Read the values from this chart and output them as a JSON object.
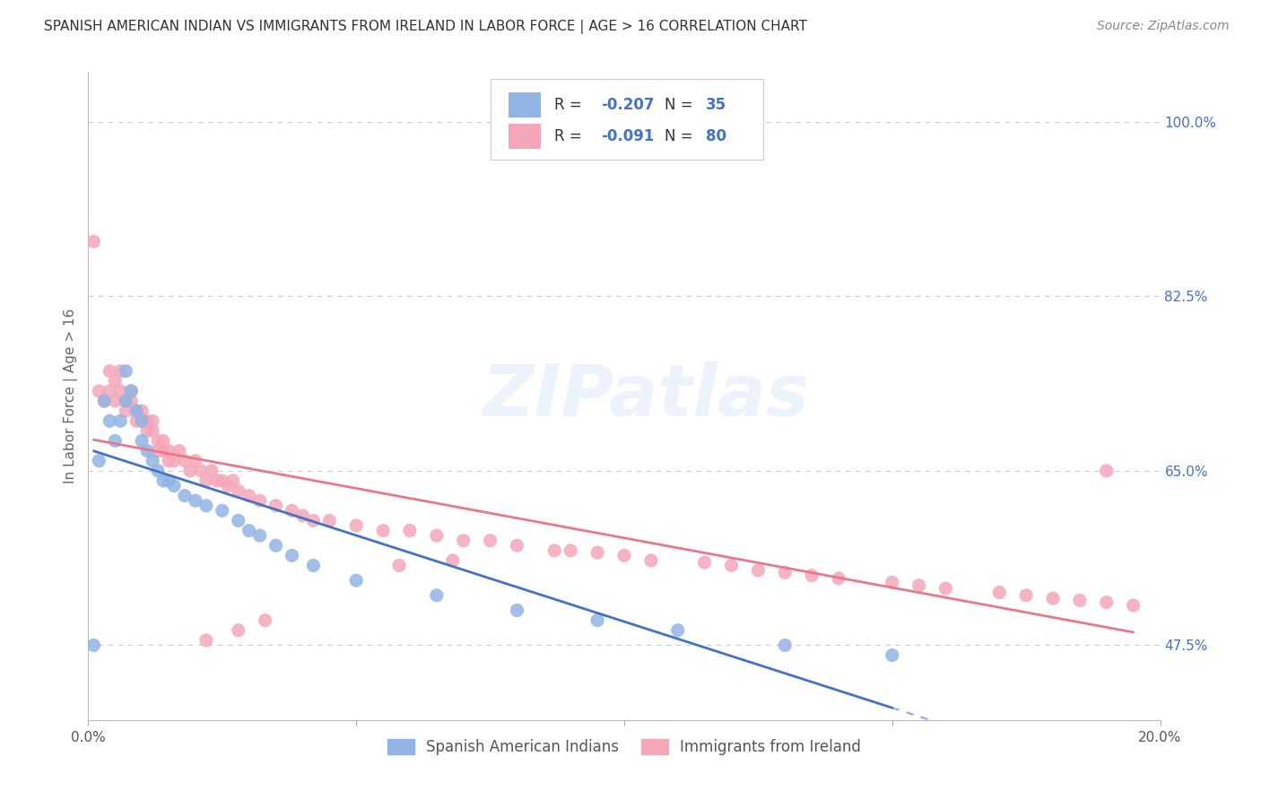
{
  "title": "SPANISH AMERICAN INDIAN VS IMMIGRANTS FROM IRELAND IN LABOR FORCE | AGE > 16 CORRELATION CHART",
  "source": "Source: ZipAtlas.com",
  "ylabel": "In Labor Force | Age > 16",
  "xlim": [
    0.0,
    0.2
  ],
  "ylim": [
    0.4,
    1.05
  ],
  "x_ticks": [
    0.0,
    0.05,
    0.1,
    0.15,
    0.2
  ],
  "x_tick_labels": [
    "0.0%",
    "",
    "",
    "",
    "20.0%"
  ],
  "y_tick_labels_right": [
    "100.0%",
    "82.5%",
    "65.0%",
    "47.5%"
  ],
  "y_tick_vals_right": [
    1.0,
    0.825,
    0.65,
    0.475
  ],
  "color_blue": "#92b4e3",
  "color_pink": "#f4a7b9",
  "color_trendline_blue": "#4472c4",
  "color_trendline_pink": "#e8788a",
  "legend_r1": "R = -0.207",
  "legend_n1": "N = 35",
  "legend_r2": "R = -0.091",
  "legend_n2": "N = 80",
  "watermark": "ZIPatlas",
  "blue_x": [
    0.001,
    0.002,
    0.003,
    0.004,
    0.005,
    0.006,
    0.007,
    0.007,
    0.008,
    0.009,
    0.01,
    0.01,
    0.011,
    0.012,
    0.013,
    0.014,
    0.015,
    0.016,
    0.018,
    0.02,
    0.022,
    0.025,
    0.028,
    0.03,
    0.032,
    0.035,
    0.038,
    0.042,
    0.05,
    0.065,
    0.08,
    0.095,
    0.11,
    0.13,
    0.15
  ],
  "blue_y": [
    0.475,
    0.66,
    0.72,
    0.7,
    0.68,
    0.7,
    0.75,
    0.72,
    0.73,
    0.71,
    0.7,
    0.68,
    0.67,
    0.66,
    0.65,
    0.64,
    0.64,
    0.635,
    0.625,
    0.62,
    0.615,
    0.61,
    0.6,
    0.59,
    0.585,
    0.575,
    0.565,
    0.555,
    0.54,
    0.525,
    0.51,
    0.5,
    0.49,
    0.475,
    0.465
  ],
  "pink_x": [
    0.001,
    0.002,
    0.003,
    0.004,
    0.004,
    0.005,
    0.005,
    0.006,
    0.006,
    0.007,
    0.007,
    0.008,
    0.008,
    0.009,
    0.009,
    0.01,
    0.01,
    0.011,
    0.011,
    0.012,
    0.012,
    0.013,
    0.013,
    0.014,
    0.014,
    0.015,
    0.015,
    0.016,
    0.017,
    0.018,
    0.019,
    0.02,
    0.021,
    0.022,
    0.023,
    0.024,
    0.025,
    0.026,
    0.027,
    0.028,
    0.03,
    0.032,
    0.035,
    0.038,
    0.04,
    0.042,
    0.045,
    0.05,
    0.055,
    0.06,
    0.065,
    0.07,
    0.075,
    0.08,
    0.09,
    0.095,
    0.1,
    0.105,
    0.115,
    0.12,
    0.125,
    0.13,
    0.135,
    0.14,
    0.15,
    0.155,
    0.16,
    0.17,
    0.175,
    0.18,
    0.185,
    0.19,
    0.195,
    0.087,
    0.068,
    0.058,
    0.033,
    0.028,
    0.022,
    0.19
  ],
  "pink_y": [
    0.88,
    0.73,
    0.72,
    0.75,
    0.73,
    0.74,
    0.72,
    0.73,
    0.75,
    0.72,
    0.71,
    0.72,
    0.73,
    0.71,
    0.7,
    0.71,
    0.7,
    0.7,
    0.69,
    0.69,
    0.7,
    0.68,
    0.67,
    0.67,
    0.68,
    0.67,
    0.66,
    0.66,
    0.67,
    0.66,
    0.65,
    0.66,
    0.65,
    0.64,
    0.65,
    0.64,
    0.64,
    0.635,
    0.64,
    0.63,
    0.625,
    0.62,
    0.615,
    0.61,
    0.605,
    0.6,
    0.6,
    0.595,
    0.59,
    0.59,
    0.585,
    0.58,
    0.58,
    0.575,
    0.57,
    0.568,
    0.565,
    0.56,
    0.558,
    0.555,
    0.55,
    0.548,
    0.545,
    0.542,
    0.538,
    0.535,
    0.532,
    0.528,
    0.525,
    0.522,
    0.52,
    0.518,
    0.515,
    0.57,
    0.56,
    0.555,
    0.5,
    0.49,
    0.48,
    0.65
  ],
  "background_color": "#ffffff",
  "grid_color": "#cccccc"
}
